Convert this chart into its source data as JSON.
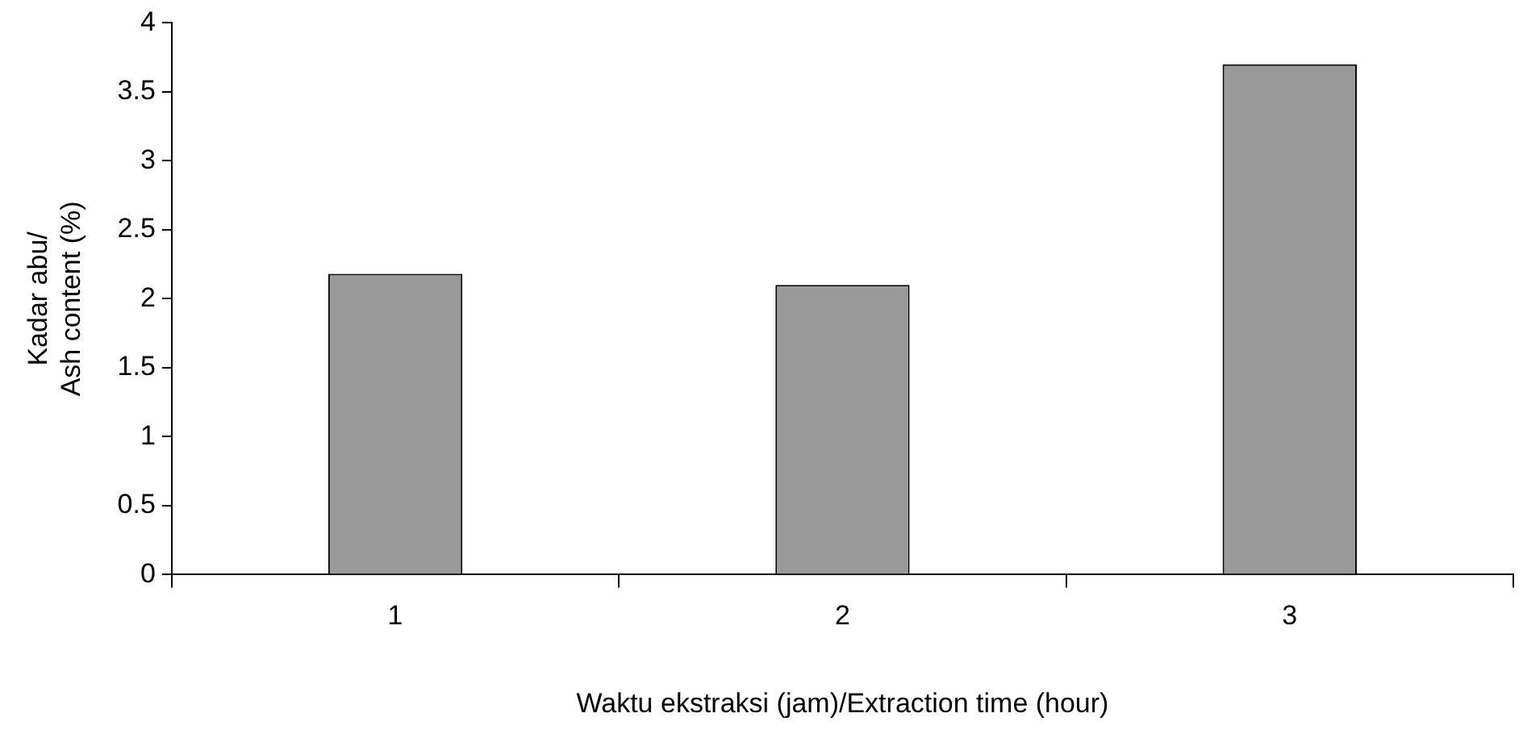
{
  "chart_data": {
    "type": "bar",
    "xlabel": "Waktu ekstraksi (jam)/Extraction time (hour)",
    "ylabel": "Kadar abu/Ash content (%)",
    "categories": [
      "1",
      "2",
      "3"
    ],
    "values": [
      2.18,
      2.1,
      3.7
    ],
    "color": "#999999",
    "ylim": [
      0,
      4
    ],
    "yticks": [
      0,
      0.5,
      1,
      1.5,
      2,
      2.5,
      3,
      3.5,
      4
    ],
    "grid": false,
    "legend": false
  }
}
